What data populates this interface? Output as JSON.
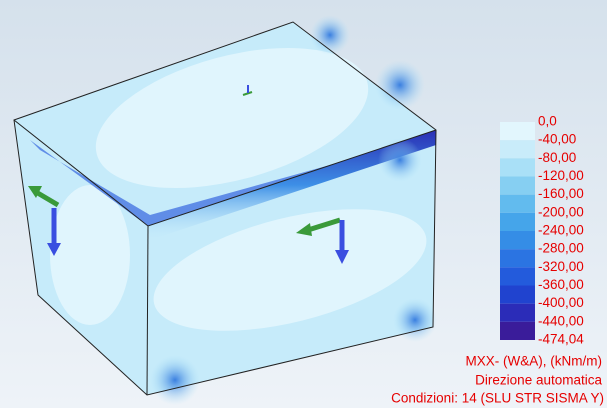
{
  "legend": {
    "entries": [
      {
        "label": "0,0",
        "color": "#e2f6fd"
      },
      {
        "label": "-40,00",
        "color": "#c9ecfa"
      },
      {
        "label": "-80,00",
        "color": "#a9e0f7"
      },
      {
        "label": "-120,00",
        "color": "#86cff2"
      },
      {
        "label": "-160,00",
        "color": "#62bbee"
      },
      {
        "label": "-200,00",
        "color": "#45a5ea"
      },
      {
        "label": "-240,00",
        "color": "#358de6"
      },
      {
        "label": "-280,00",
        "color": "#2b74e2"
      },
      {
        "label": "-320,00",
        "color": "#235bdc"
      },
      {
        "label": "-360,00",
        "color": "#2043cf"
      },
      {
        "label": "-400,00",
        "color": "#2b2cb8"
      },
      {
        "label": "-440,00",
        "color": "#3a1c9a"
      },
      {
        "label": "-474,04",
        "color": null
      }
    ]
  },
  "caption": {
    "quantity": "MXX- (W&A), (kNm/m)",
    "direction": "Direzione automatica",
    "conditions": "Condizioni: 14 (SLU STR SISMA Y)"
  }
}
